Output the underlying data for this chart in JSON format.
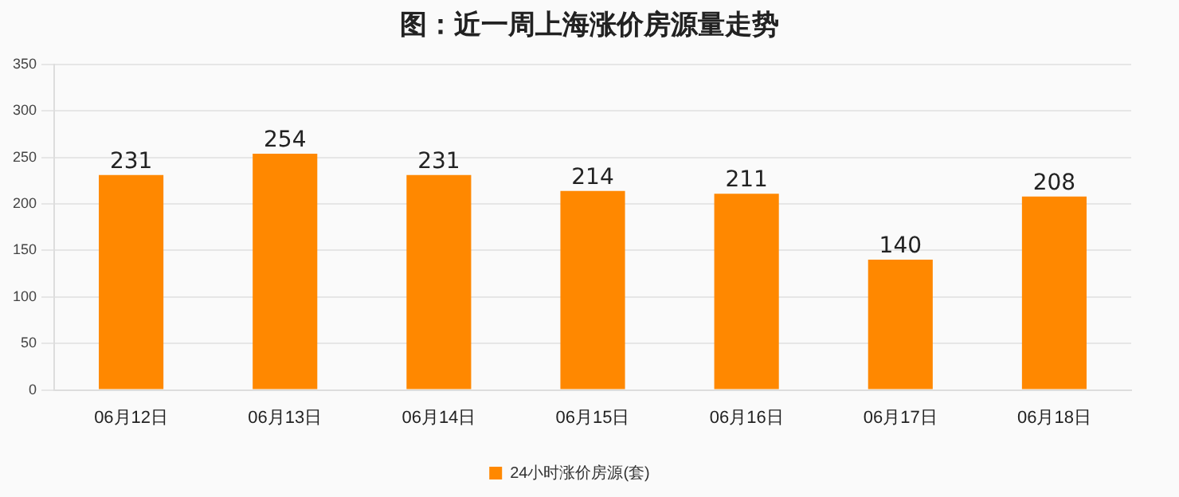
{
  "chart_data": {
    "type": "bar",
    "title": "图：近一周上海涨价房源量走势",
    "categories": [
      "06月12日",
      "06月13日",
      "06月14日",
      "06月15日",
      "06月16日",
      "06月17日",
      "06月18日"
    ],
    "series": [
      {
        "name": "24小时涨价房源(套)",
        "color": "#ff8800",
        "values": [
          231,
          254,
          231,
          214,
          211,
          140,
          208
        ]
      }
    ],
    "ylim": [
      0,
      350
    ],
    "yticks": [
      0,
      50,
      100,
      150,
      200,
      250,
      300,
      350
    ],
    "grid": "y",
    "legend": "bottom",
    "data_labels": true
  }
}
